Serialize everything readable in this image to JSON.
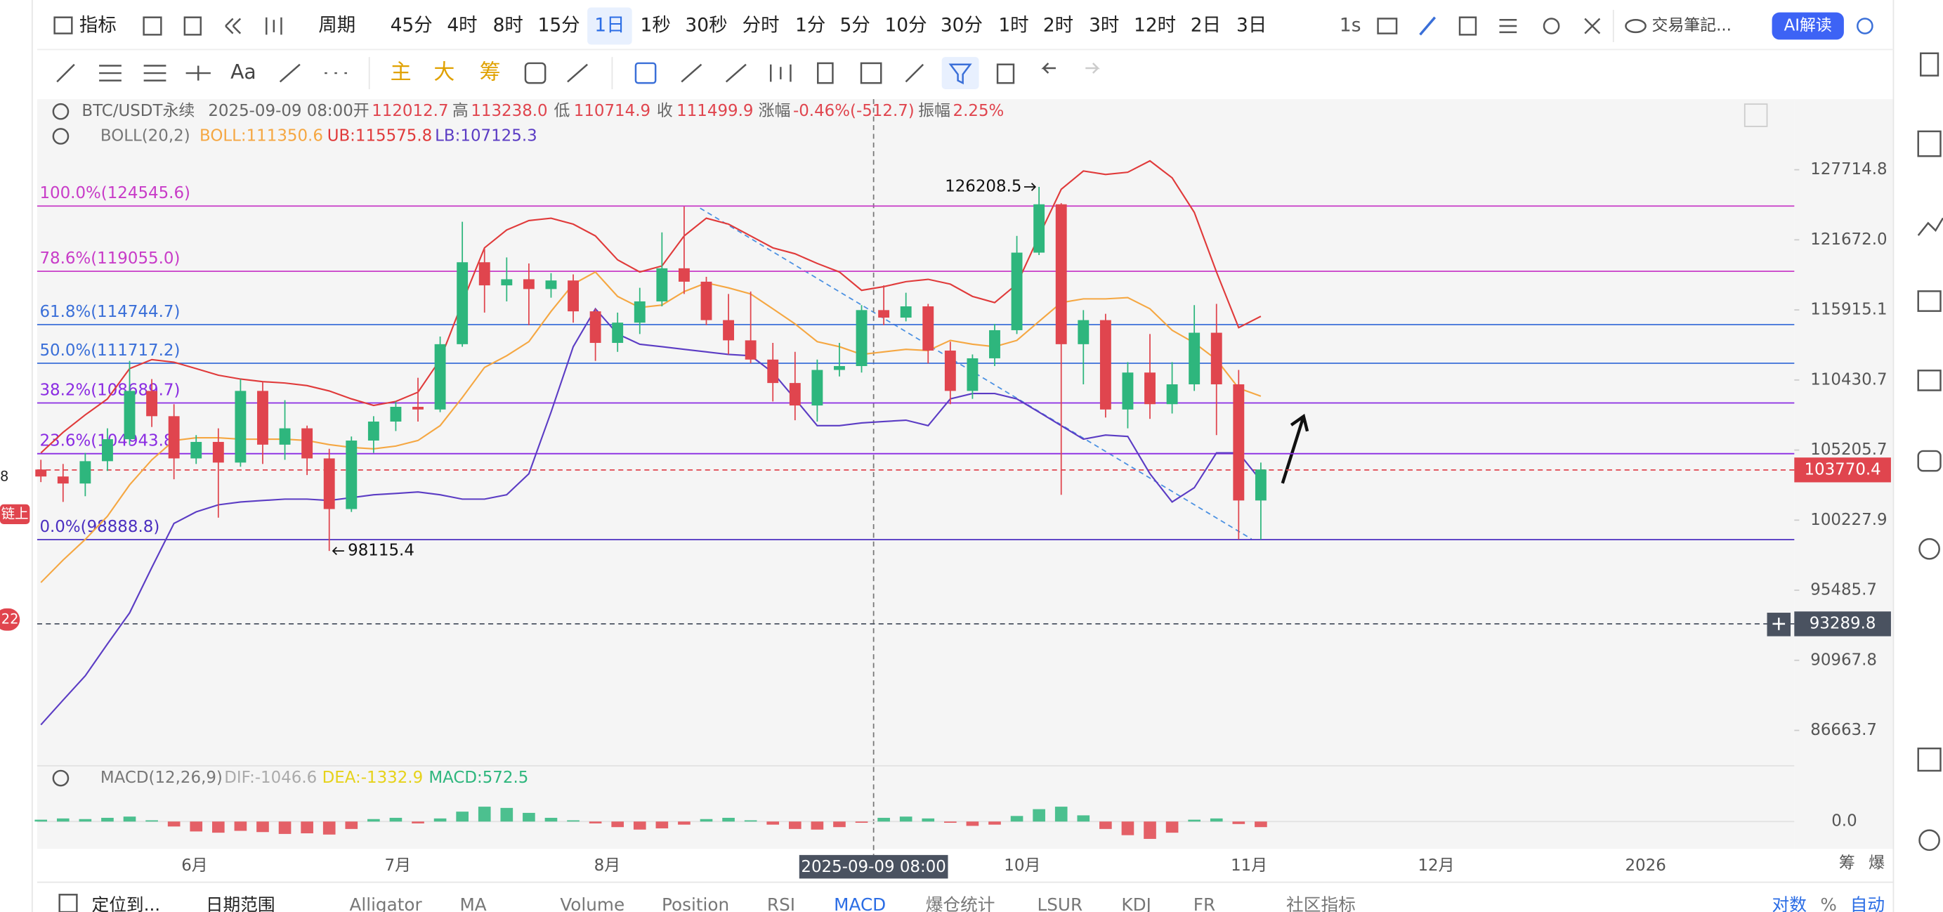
{
  "toolbar": {
    "indicator": "指标",
    "period": "周期",
    "intervals": [
      "45分",
      "4时",
      "8时",
      "15分",
      "1日",
      "1秒",
      "30秒",
      "分时",
      "1分",
      "5分",
      "10分",
      "30分",
      "1时",
      "2时",
      "3时",
      "12时",
      "2日",
      "3日"
    ],
    "selected": 4,
    "speed": "1s",
    "notes": "交易筆記...",
    "ai": "AI解读"
  },
  "tools": {
    "text_tool": "Aa",
    "chips": [
      "主",
      "大",
      "筹"
    ]
  },
  "left_edge": [
    "8",
    "链上",
    "22"
  ],
  "chart_data": {
    "type": "candlestick",
    "title": "BTC/USDT永续",
    "legend": {
      "time": "2025-09-09 08:00",
      "items": [
        {
          "label": "开",
          "value": "112012.7"
        },
        {
          "label": "高",
          "value": "113238.0"
        },
        {
          "label": "低",
          "value": "110714.9"
        },
        {
          "label": "收",
          "value": "111499.9"
        },
        {
          "label": "涨幅",
          "value": "-0.46%(-512.7)"
        },
        {
          "label": "振幅",
          "value": "2.25%"
        }
      ]
    },
    "boll_legend": {
      "title": "BOLL(20,2)",
      "mid": "BOLL:111350.6",
      "upper": "UB:115575.8",
      "lower": "LB:107125.3"
    },
    "yscale": "log",
    "ylim": [
      84640,
      134108
    ],
    "yticks": [
      127714.8,
      {
        "value": 121672,
        "label": "121672.0"
      },
      115915.1,
      110430.7,
      105205.7,
      100227.9,
      95485.7,
      90967.8,
      86663.7
    ],
    "x_labels": [
      "6月",
      "7月",
      "8月",
      "10月",
      "11月",
      "12月",
      "2026"
    ],
    "axis_corner": [
      "筹",
      "爆"
    ],
    "up_color": "#2eb67d",
    "down_color": "#e0454e",
    "ohlc": [
      [
        103800,
        104500,
        102900,
        103300
      ],
      [
        103300,
        104200,
        101500,
        102800
      ],
      [
        102800,
        105000,
        101900,
        104400
      ],
      [
        104400,
        106800,
        103700,
        106000
      ],
      [
        106000,
        111900,
        105600,
        109600
      ],
      [
        109600,
        110500,
        106900,
        107700
      ],
      [
        107700,
        108600,
        103100,
        104600
      ],
      [
        104600,
        106300,
        104200,
        105800
      ],
      [
        105800,
        106800,
        100400,
        104300
      ],
      [
        104300,
        110500,
        104000,
        109600
      ],
      [
        109600,
        110300,
        104200,
        105600
      ],
      [
        105600,
        108900,
        104500,
        106800
      ],
      [
        106800,
        107000,
        103400,
        104600
      ],
      [
        104600,
        105300,
        98115.4,
        101000
      ],
      [
        101000,
        106200,
        100800,
        105900
      ],
      [
        105900,
        107700,
        105000,
        107300
      ],
      [
        107300,
        108800,
        106600,
        108400
      ],
      [
        108400,
        110600,
        107300,
        108200
      ],
      [
        108200,
        113800,
        108000,
        113200
      ],
      [
        113200,
        123200,
        113000,
        119800
      ],
      [
        119800,
        120900,
        115700,
        117900
      ],
      [
        117900,
        120200,
        116600,
        118400
      ],
      [
        118400,
        119700,
        114700,
        117600
      ],
      [
        117600,
        118900,
        116900,
        118300
      ],
      [
        118300,
        118800,
        114900,
        115800
      ],
      [
        115800,
        116000,
        111900,
        113300
      ],
      [
        113300,
        115700,
        112600,
        114900
      ],
      [
        114900,
        117700,
        114000,
        116600
      ],
      [
        116600,
        122300,
        116200,
        119300
      ],
      [
        119300,
        124500,
        117200,
        118200
      ],
      [
        118200,
        118600,
        114700,
        115100
      ],
      [
        115100,
        117200,
        112400,
        113500
      ],
      [
        113500,
        117400,
        111700,
        112000
      ],
      [
        112000,
        113300,
        108800,
        110200
      ],
      [
        110200,
        112600,
        107400,
        108500
      ],
      [
        108500,
        112000,
        107300,
        111200
      ],
      [
        111200,
        113300,
        110700,
        111500
      ],
      [
        111500,
        116300,
        111000,
        115900
      ],
      [
        115900,
        117900,
        114700,
        115300
      ],
      [
        115300,
        117300,
        115000,
        116200
      ],
      [
        116200,
        116400,
        111700,
        112700
      ],
      [
        112700,
        113400,
        108600,
        109600
      ],
      [
        109600,
        112400,
        109000,
        112100
      ],
      [
        112100,
        114800,
        111500,
        114300
      ],
      [
        114300,
        122000,
        114000,
        120600
      ],
      [
        120600,
        126208.5,
        120400,
        124700
      ],
      [
        124700,
        124800,
        102000,
        113200
      ],
      [
        113200,
        115900,
        110100,
        115100
      ],
      [
        115100,
        115600,
        107600,
        108200
      ],
      [
        108200,
        111800,
        106800,
        111000
      ],
      [
        111000,
        114000,
        107500,
        108600
      ],
      [
        108600,
        111800,
        107900,
        110100
      ],
      [
        110100,
        116300,
        109600,
        114100
      ],
      [
        114100,
        116400,
        106300,
        110100
      ],
      [
        110100,
        111200,
        98900,
        101600
      ],
      [
        101600,
        104300,
        98900,
        103800
      ]
    ],
    "boll": {
      "upper_color": "#e03a3a",
      "mid_color": "#f5a742",
      "lower_color": "#5b3cc4",
      "upper": [
        105000,
        106500,
        107800,
        109000,
        111300,
        112000,
        111800,
        111300,
        110800,
        110500,
        110300,
        110200,
        110000,
        109600,
        109000,
        108500,
        108800,
        109500,
        112000,
        116500,
        121000,
        122500,
        123300,
        123500,
        123000,
        122000,
        120000,
        119000,
        119500,
        122000,
        123500,
        123000,
        122000,
        121000,
        120500,
        119700,
        119000,
        117500,
        117800,
        118200,
        118400,
        118000,
        117000,
        116500,
        118000,
        122000,
        126000,
        127600,
        127300,
        127500,
        128500,
        127000,
        124000,
        119000,
        114500,
        115400
      ],
      "mid": [
        96000,
        97500,
        98900,
        100500,
        102700,
        104500,
        105900,
        106100,
        106100,
        106000,
        106000,
        106000,
        105900,
        105600,
        105400,
        105300,
        105500,
        105900,
        107000,
        109100,
        111400,
        112300,
        113400,
        115800,
        118000,
        119000,
        117000,
        116100,
        116300,
        117400,
        118100,
        117700,
        117200,
        116000,
        114800,
        113400,
        113000,
        112400,
        112600,
        112800,
        112700,
        113500,
        113200,
        113000,
        113500,
        115000,
        116500,
        116800,
        116800,
        116900,
        116000,
        114300,
        113300,
        112000,
        109800,
        109200
      ],
      "lower": [
        87000,
        88500,
        90000,
        92000,
        94000,
        97000,
        100000,
        100800,
        101300,
        101500,
        101600,
        101700,
        101700,
        101600,
        101800,
        102000,
        102100,
        102200,
        102000,
        101700,
        101700,
        102000,
        103500,
        108000,
        113000,
        116000,
        114000,
        113200,
        113000,
        112800,
        112600,
        112400,
        112300,
        111000,
        109000,
        107000,
        107000,
        107200,
        107300,
        107400,
        107000,
        109000,
        109400,
        109400,
        109000,
        108000,
        107000,
        106000,
        106300,
        106200,
        103500,
        101500,
        102500,
        105000,
        105000,
        103000
      ]
    },
    "fib_levels": [
      {
        "label": "100.0%(124545.6)",
        "value": 124545.6,
        "color": "#c83cc8"
      },
      {
        "label": "78.6%(119055.0)",
        "value": 119055,
        "color": "#c83cc8"
      },
      {
        "label": "61.8%(114744.7)",
        "value": 114744.7,
        "color": "#3a6fd8"
      },
      {
        "label": "50.0%(111717.2)",
        "value": 111717.2,
        "color": "#3a6fd8"
      },
      {
        "label": "38.2%(108689.7)",
        "value": 108689.7,
        "color": "#8a2be2"
      },
      {
        "label": "23.6%(104943.8)",
        "value": 104943.8,
        "color": "#8a2be2"
      },
      {
        "label": "0.0%(98888.8)",
        "value": 98888.8,
        "color": "#4b2fc0"
      }
    ],
    "high_mark": 126208.5,
    "low_mark": 98115.4,
    "price_tags": [
      {
        "value": 103770.4,
        "color": "#e0454e"
      },
      {
        "value": 93289.8,
        "color": "#4a5260"
      }
    ],
    "macd": {
      "title": "MACD(12,26,9)",
      "dif": "DIF:-1046.6",
      "dea": "DEA:-1332.9",
      "value": "MACD:572.5",
      "ylim": [
        -4000,
        4000
      ],
      "yticks": [
        {
          "value": 0,
          "label": "0.0"
        }
      ],
      "hist": [
        300,
        500,
        400,
        600,
        800,
        200,
        -800,
        -1600,
        -1800,
        -1500,
        -1700,
        -2000,
        -1900,
        -2100,
        -1200,
        400,
        600,
        -300,
        500,
        1600,
        2400,
        2200,
        1400,
        600,
        200,
        -300,
        -900,
        -1300,
        -1100,
        -500,
        400,
        600,
        200,
        -500,
        -1200,
        -1300,
        -900,
        -200,
        600,
        800,
        500,
        -200,
        -700,
        -500,
        900,
        2000,
        2400,
        1000,
        -1200,
        -2200,
        -2800,
        -1800,
        300,
        500,
        -400,
        -900
      ]
    }
  },
  "bottom_bar": {
    "locate": "定位到...",
    "range": "日期范围",
    "tabs": [
      "Alligator",
      "MA",
      "Volume",
      "Position",
      "RSI",
      "MACD",
      "爆仓统计",
      "LSUR",
      "KDJ",
      "FR",
      "社区指标"
    ],
    "selected": 5,
    "right": [
      "对数",
      "%",
      "自动"
    ]
  }
}
